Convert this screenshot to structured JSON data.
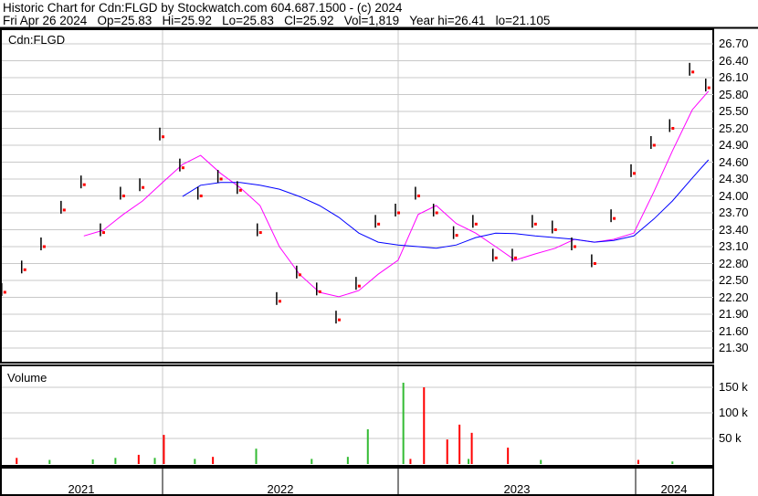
{
  "header": {
    "line1": "Historic Chart for Cdn:FLGD by Stockwatch.com 604.687.1500 - (c) 2024",
    "line2": "Fri Apr 26 2024   Op=25.83   Hi=25.92   Lo=25.83   Cl=25.92   Vol=1,819   Year hi=26.41   lo=21.105"
  },
  "chart_data": [
    {
      "type": "scatter",
      "title": "Cdn:FLGD",
      "ylim": [
        21.1,
        26.85
      ],
      "yticks": [
        "26.70",
        "26.40",
        "26.10",
        "25.80",
        "25.50",
        "25.20",
        "24.90",
        "24.60",
        "24.30",
        "24.00",
        "23.70",
        "23.40",
        "23.10",
        "22.80",
        "22.50",
        "22.20",
        "21.90",
        "21.60",
        "21.30"
      ],
      "grid": true,
      "colors": {
        "price": "#ff0000",
        "bar": "#000000",
        "ma_short": "#ff00ff",
        "ma_long": "#0000ff"
      },
      "x": [
        "2021-05",
        "2021-06",
        "2021-07",
        "2021-08",
        "2021-09",
        "2021-10",
        "2021-11",
        "2021-12",
        "2022-01",
        "2022-02",
        "2022-03",
        "2022-04",
        "2022-05",
        "2022-06",
        "2022-07",
        "2022-08",
        "2022-09",
        "2022-10",
        "2022-11",
        "2022-12",
        "2023-01",
        "2023-02",
        "2023-03",
        "2023-04",
        "2023-05",
        "2023-06",
        "2023-07",
        "2023-08",
        "2023-09",
        "2023-10",
        "2023-11",
        "2023-12",
        "2024-01",
        "2024-02",
        "2024-03",
        "2024-04",
        "2024-04-26"
      ],
      "series": [
        {
          "values": [
            22.29,
            22.69,
            23.1,
            23.75,
            24.2,
            23.35,
            24.0,
            24.15,
            25.05,
            24.5,
            24.0,
            24.3,
            24.1,
            23.35,
            22.13,
            22.6,
            22.3,
            21.8,
            22.4,
            23.5,
            23.7,
            24.0,
            23.7,
            23.3,
            23.5,
            22.9,
            22.9,
            23.5,
            23.4,
            23.1,
            22.8,
            23.6,
            24.4,
            24.9,
            25.2,
            26.2,
            25.92
          ]
        },
        {
          "values": [
            null,
            null,
            null,
            null,
            23.29,
            23.39,
            23.67,
            23.91,
            24.24,
            24.56,
            24.72,
            24.4,
            24.15,
            23.83,
            23.1,
            22.61,
            22.29,
            22.21,
            22.32,
            22.61,
            22.86,
            23.67,
            23.83,
            23.51,
            23.34,
            23.1,
            22.86,
            22.97,
            23.07,
            23.23,
            23.18,
            23.23,
            23.34,
            24.07,
            24.8,
            25.53,
            25.86
          ]
        },
        {
          "values": [
            null,
            null,
            null,
            null,
            null,
            null,
            null,
            null,
            null,
            23.99,
            24.19,
            24.24,
            24.24,
            24.19,
            24.12,
            23.99,
            23.83,
            23.62,
            23.34,
            23.18,
            23.13,
            23.1,
            23.07,
            23.13,
            23.26,
            23.34,
            23.33,
            23.29,
            23.26,
            23.23,
            23.18,
            23.21,
            23.29,
            23.59,
            23.91,
            24.32,
            24.64
          ]
        }
      ]
    },
    {
      "type": "bar",
      "title": "Volume",
      "ylim": [
        0,
        190
      ],
      "yticks": [
        "150 k",
        "100 k",
        "50 k"
      ],
      "colors": {
        "up": "#33bb33",
        "down": "#ff0000"
      },
      "bars": [
        {
          "date": "2021-05-20",
          "value": 12,
          "dir": "down"
        },
        {
          "date": "2021-07-10",
          "value": 8,
          "dir": "up"
        },
        {
          "date": "2021-09-15",
          "value": 9,
          "dir": "up"
        },
        {
          "date": "2021-10-20",
          "value": 12,
          "dir": "up"
        },
        {
          "date": "2021-11-25",
          "value": 18,
          "dir": "down"
        },
        {
          "date": "2021-12-20",
          "value": 12,
          "dir": "up"
        },
        {
          "date": "2022-01-03",
          "value": 57,
          "dir": "down"
        },
        {
          "date": "2022-02-20",
          "value": 10,
          "dir": "up"
        },
        {
          "date": "2022-03-20",
          "value": 14,
          "dir": "down"
        },
        {
          "date": "2022-05-26",
          "value": 30,
          "dir": "up"
        },
        {
          "date": "2022-08-20",
          "value": 10,
          "dir": "up"
        },
        {
          "date": "2022-10-15",
          "value": 14,
          "dir": "up"
        },
        {
          "date": "2022-11-15",
          "value": 68,
          "dir": "up"
        },
        {
          "date": "2023-01-09",
          "value": 159,
          "dir": "up"
        },
        {
          "date": "2023-01-20",
          "value": 10,
          "dir": "down"
        },
        {
          "date": "2023-02-10",
          "value": 150,
          "dir": "down"
        },
        {
          "date": "2023-03-18",
          "value": 48,
          "dir": "down"
        },
        {
          "date": "2023-04-06",
          "value": 77,
          "dir": "down"
        },
        {
          "date": "2023-04-20",
          "value": 10,
          "dir": "up"
        },
        {
          "date": "2023-04-25",
          "value": 61,
          "dir": "down"
        },
        {
          "date": "2023-06-20",
          "value": 32,
          "dir": "down"
        },
        {
          "date": "2023-08-10",
          "value": 8,
          "dir": "up"
        },
        {
          "date": "2024-01-08",
          "value": 8,
          "dir": "down"
        },
        {
          "date": "2024-03-01",
          "value": 5,
          "dir": "up"
        }
      ]
    }
  ],
  "xaxis": {
    "years": [
      "2021",
      "2022",
      "2023",
      "2024"
    ]
  }
}
